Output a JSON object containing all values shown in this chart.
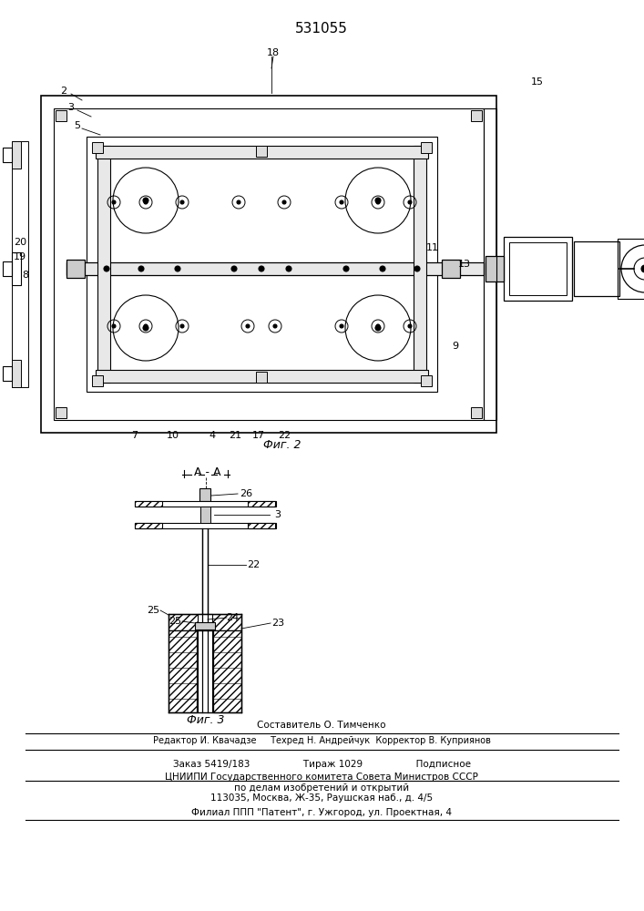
{
  "patent_number": "531055",
  "bg_color": "#ffffff",
  "line_color": "#000000",
  "fig2_label": "Фиг. 2",
  "fig3_label": "Фиг. 3",
  "section_label": "А - А",
  "footer_lines": [
    "Составитель О. Тимченко",
    "Редактор И. Квачадзе     Техред Н. Андрейчук  Корректор В. Куприянов",
    "Заказ 5419/183                  Тираж 1029                  Подписное",
    "ЦНИИПИ Государственного комитета Совета Министров СССР",
    "по делам изобретений и открытий",
    "113035, Москва, Ж-35, Раушская наб., д. 4/5",
    "Филиал ППП \"Патент\", г. Ужгород, ул. Проектная, 4"
  ]
}
